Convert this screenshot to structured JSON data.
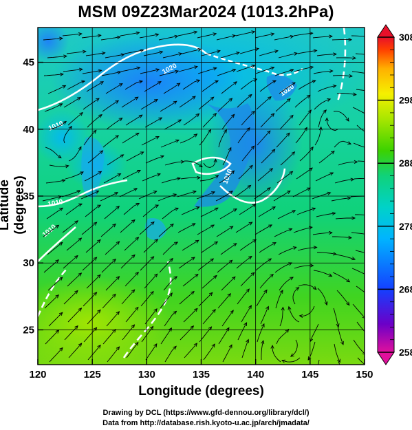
{
  "title": "MSM 09Z23Mar2024 (1013.2hPa)",
  "x_axis": {
    "label": "Longitude (degrees)",
    "ticks": [
      "120",
      "125",
      "130",
      "135",
      "140",
      "145",
      "150"
    ],
    "range": [
      120,
      150
    ]
  },
  "y_axis": {
    "label": "Latitude  (degrees)",
    "ticks": [
      "25",
      "30",
      "35",
      "40",
      "45"
    ],
    "range": [
      22.4,
      47.6
    ]
  },
  "colorbar": {
    "ticks": [
      "308",
      "298",
      "288",
      "278",
      "268",
      "258"
    ],
    "range": [
      258,
      308
    ],
    "palette": [
      "#e0109c",
      "#6b00c8",
      "#1440ff",
      "#00b4ff",
      "#00d2c8",
      "#10d27a",
      "#3cd200",
      "#a8e600",
      "#f5f000",
      "#ffb000",
      "#ff4000",
      "#e8102a"
    ]
  },
  "contours": {
    "labels": [
      "1010",
      "1010",
      "1010",
      "1010",
      "1020",
      "1020"
    ],
    "color": "#ffffff"
  },
  "credits": {
    "line1": "Drawing by DCL (https://www.gfd-dennou.org/library/dcl/)",
    "line2": "Data from http://database.rish.kyoto-u.ac.jp/arch/jmadata/"
  }
}
